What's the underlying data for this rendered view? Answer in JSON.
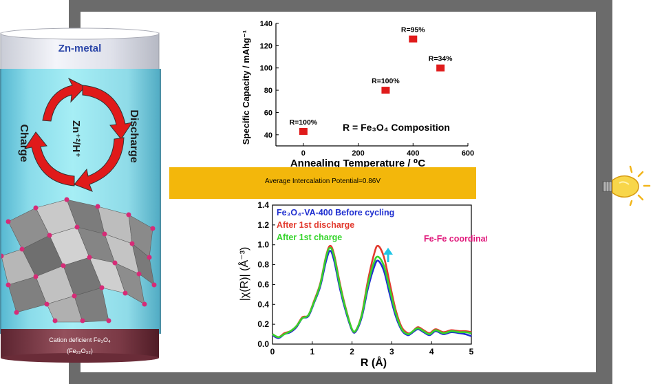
{
  "cell": {
    "top_label": "Zn-metal",
    "bottom_label_1": "Cation deficient Fe₃O₄",
    "bottom_label_2": "(Fe₂₂O₃₂)",
    "ion_label": "Zn⁺²/H⁺",
    "left_arrow_label": "Charge",
    "right_arrow_label": "Discharge"
  },
  "band": {
    "text": "Average Intercalation Potential=0.86V"
  },
  "chart_data": [
    {
      "type": "scatter",
      "xlabel": "Annealing Temperature / ⁰C",
      "ylabel": "Specific Capacity / mAhg⁻¹",
      "xlim": [
        -100,
        600
      ],
      "ylim": [
        30,
        140
      ],
      "x_ticks": [
        0,
        200,
        400,
        600
      ],
      "y_ticks": [
        40,
        60,
        80,
        100,
        120,
        140
      ],
      "marker_color": "#e01b1b",
      "points": [
        {
          "x": 0,
          "y": 43,
          "label": "R=100%"
        },
        {
          "x": 300,
          "y": 80,
          "label": "R=100%"
        },
        {
          "x": 400,
          "y": 126,
          "label": "R=95%"
        },
        {
          "x": 500,
          "y": 100,
          "label": "R=34%"
        }
      ],
      "annotation": "R = Fe₃O₄ Composition"
    },
    {
      "type": "line",
      "xlabel": "R (Å)",
      "ylabel": "|χ(R)| (Å⁻³)",
      "xlim": [
        0,
        5
      ],
      "ylim": [
        0,
        1.4
      ],
      "x_ticks": [
        0,
        1,
        2,
        3,
        4,
        5
      ],
      "y_ticks": [
        0.0,
        0.2,
        0.4,
        0.6,
        0.8,
        1.0,
        1.2,
        1.4
      ],
      "y_tick_labels": [
        "0.0",
        "0.2",
        "0.4",
        "0.6",
        "0.8",
        "1.0",
        "1.2",
        "1.4"
      ],
      "annotation": "Fe-Fe  coordination",
      "annotation_color": "#e0177a",
      "arrow_color": "#1fc6e6",
      "series": [
        {
          "name": "Fe₃O₄-VA-400 Before cycling",
          "color": "#1f2fd0",
          "x": [
            0,
            0.15,
            0.3,
            0.45,
            0.6,
            0.75,
            0.9,
            1.05,
            1.2,
            1.35,
            1.45,
            1.55,
            1.7,
            1.85,
            2.0,
            2.1,
            2.25,
            2.4,
            2.55,
            2.65,
            2.8,
            2.95,
            3.1,
            3.25,
            3.4,
            3.5,
            3.65,
            3.8,
            3.95,
            4.1,
            4.3,
            4.5,
            4.7,
            4.85,
            5.0
          ],
          "y": [
            0.09,
            0.06,
            0.1,
            0.12,
            0.17,
            0.26,
            0.28,
            0.42,
            0.58,
            0.84,
            0.94,
            0.84,
            0.55,
            0.32,
            0.14,
            0.13,
            0.28,
            0.56,
            0.77,
            0.84,
            0.74,
            0.5,
            0.28,
            0.14,
            0.09,
            0.11,
            0.15,
            0.12,
            0.09,
            0.13,
            0.1,
            0.12,
            0.11,
            0.1,
            0.08
          ]
        },
        {
          "name": "After 1st discharge",
          "color": "#e23a2e",
          "x": [
            0,
            0.15,
            0.3,
            0.45,
            0.6,
            0.75,
            0.9,
            1.05,
            1.2,
            1.35,
            1.45,
            1.55,
            1.7,
            1.85,
            2.0,
            2.1,
            2.25,
            2.4,
            2.55,
            2.65,
            2.8,
            2.95,
            3.1,
            3.25,
            3.4,
            3.5,
            3.65,
            3.8,
            3.95,
            4.1,
            4.3,
            4.5,
            4.7,
            4.85,
            5.0
          ],
          "y": [
            0.1,
            0.07,
            0.11,
            0.13,
            0.18,
            0.27,
            0.29,
            0.44,
            0.61,
            0.89,
            0.99,
            0.9,
            0.6,
            0.35,
            0.15,
            0.14,
            0.31,
            0.64,
            0.9,
            0.99,
            0.88,
            0.61,
            0.34,
            0.17,
            0.11,
            0.12,
            0.17,
            0.14,
            0.11,
            0.15,
            0.12,
            0.14,
            0.13,
            0.13,
            0.12
          ]
        },
        {
          "name": "After 1st charge",
          "color": "#36d42c",
          "x": [
            0,
            0.15,
            0.3,
            0.45,
            0.6,
            0.75,
            0.9,
            1.05,
            1.2,
            1.35,
            1.45,
            1.55,
            1.7,
            1.85,
            2.0,
            2.1,
            2.25,
            2.4,
            2.55,
            2.65,
            2.8,
            2.95,
            3.1,
            3.25,
            3.4,
            3.5,
            3.65,
            3.8,
            3.95,
            4.1,
            4.3,
            4.5,
            4.7,
            4.85,
            5.0
          ],
          "y": [
            0.1,
            0.07,
            0.1,
            0.13,
            0.18,
            0.26,
            0.29,
            0.43,
            0.6,
            0.88,
            0.97,
            0.88,
            0.58,
            0.34,
            0.15,
            0.14,
            0.3,
            0.6,
            0.82,
            0.88,
            0.79,
            0.55,
            0.31,
            0.15,
            0.1,
            0.12,
            0.16,
            0.13,
            0.1,
            0.14,
            0.11,
            0.13,
            0.12,
            0.12,
            0.11
          ]
        }
      ]
    }
  ]
}
